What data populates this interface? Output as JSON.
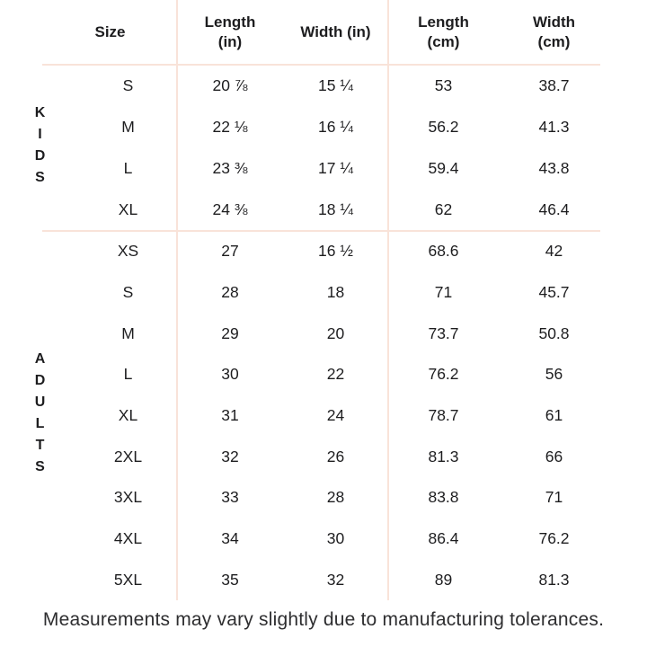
{
  "colors": {
    "divider": "#f9e3d9",
    "text": "#1d1d1f",
    "background": "#ffffff"
  },
  "table": {
    "headers": {
      "size": "Size",
      "length_in": [
        "Length",
        "(in)"
      ],
      "width_in": [
        "Width (in)"
      ],
      "length_cm": [
        "Length",
        "(cm)"
      ],
      "width_cm": [
        "Width",
        "(cm)"
      ]
    },
    "sections": [
      {
        "label": "KIDS",
        "rows": [
          {
            "size": "S",
            "length_in": "20 ⅞",
            "width_in": "15 ¼",
            "length_cm": "53",
            "width_cm": "38.7"
          },
          {
            "size": "M",
            "length_in": "22 ⅛",
            "width_in": "16 ¼",
            "length_cm": "56.2",
            "width_cm": "41.3"
          },
          {
            "size": "L",
            "length_in": "23 ⅜",
            "width_in": "17 ¼",
            "length_cm": "59.4",
            "width_cm": "43.8"
          },
          {
            "size": "XL",
            "length_in": "24 ⅜",
            "width_in": "18 ¼",
            "length_cm": "62",
            "width_cm": "46.4"
          }
        ]
      },
      {
        "label": "ADULTS",
        "rows": [
          {
            "size": "XS",
            "length_in": "27",
            "width_in": "16 ½",
            "length_cm": "68.6",
            "width_cm": "42"
          },
          {
            "size": "S",
            "length_in": "28",
            "width_in": "18",
            "length_cm": "71",
            "width_cm": "45.7"
          },
          {
            "size": "M",
            "length_in": "29",
            "width_in": "20",
            "length_cm": "73.7",
            "width_cm": "50.8"
          },
          {
            "size": "L",
            "length_in": "30",
            "width_in": "22",
            "length_cm": "76.2",
            "width_cm": "56"
          },
          {
            "size": "XL",
            "length_in": "31",
            "width_in": "24",
            "length_cm": "78.7",
            "width_cm": "61"
          },
          {
            "size": "2XL",
            "length_in": "32",
            "width_in": "26",
            "length_cm": "81.3",
            "width_cm": "66"
          },
          {
            "size": "3XL",
            "length_in": "33",
            "width_in": "28",
            "length_cm": "83.8",
            "width_cm": "71"
          },
          {
            "size": "4XL",
            "length_in": "34",
            "width_in": "30",
            "length_cm": "86.4",
            "width_cm": "76.2"
          },
          {
            "size": "5XL",
            "length_in": "35",
            "width_in": "32",
            "length_cm": "89",
            "width_cm": "81.3"
          }
        ]
      }
    ]
  },
  "footer": {
    "note": "Measurements may vary slightly due to manufacturing tolerances."
  }
}
